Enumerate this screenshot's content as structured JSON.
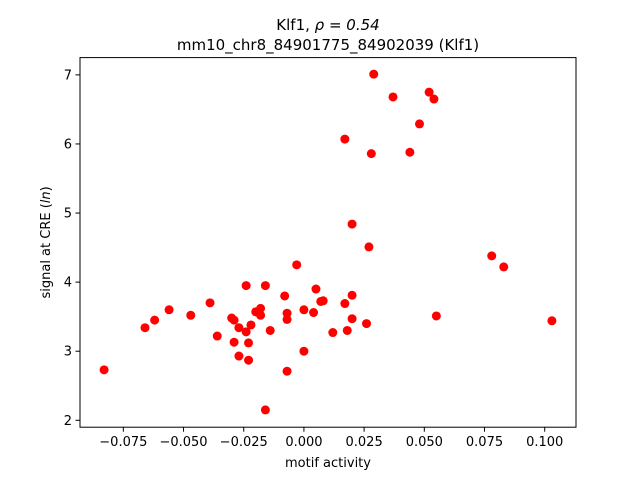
{
  "chart_data": {
    "type": "scatter",
    "title_line1_name": "Klf1, ",
    "title_line1_rho": "ρ = 0.54",
    "title_line2": "mm10_chr8_84901775_84902039 (Klf1)",
    "xlabel": "motif activity",
    "ylabel_main": "signal at CRE (",
    "ylabel_italic": "ln",
    "ylabel_close": ")",
    "xlim": [
      -0.093,
      0.113
    ],
    "ylim": [
      1.9,
      7.25
    ],
    "xticks": [
      -0.075,
      -0.05,
      -0.025,
      0.0,
      0.025,
      0.05,
      0.075,
      0.1
    ],
    "xtick_labels": [
      "−0.075",
      "−0.050",
      "−0.025",
      "0.000",
      "0.025",
      "0.050",
      "0.075",
      "0.100"
    ],
    "yticks": [
      2,
      3,
      4,
      5,
      6,
      7
    ],
    "ytick_labels": [
      "2",
      "3",
      "4",
      "5",
      "6",
      "7"
    ],
    "marker_color": "#ff0000",
    "grid": false,
    "points": [
      {
        "x": -0.083,
        "y": 2.73
      },
      {
        "x": -0.066,
        "y": 3.34
      },
      {
        "x": -0.062,
        "y": 3.45
      },
      {
        "x": -0.056,
        "y": 3.6
      },
      {
        "x": -0.047,
        "y": 3.52
      },
      {
        "x": -0.039,
        "y": 3.7
      },
      {
        "x": -0.036,
        "y": 3.22
      },
      {
        "x": -0.03,
        "y": 3.48
      },
      {
        "x": -0.029,
        "y": 3.45
      },
      {
        "x": -0.029,
        "y": 3.13
      },
      {
        "x": -0.027,
        "y": 2.93
      },
      {
        "x": -0.027,
        "y": 3.34
      },
      {
        "x": -0.024,
        "y": 3.95
      },
      {
        "x": -0.024,
        "y": 3.28
      },
      {
        "x": -0.023,
        "y": 3.12
      },
      {
        "x": -0.023,
        "y": 2.87
      },
      {
        "x": -0.022,
        "y": 3.38
      },
      {
        "x": -0.02,
        "y": 3.57
      },
      {
        "x": -0.018,
        "y": 3.62
      },
      {
        "x": -0.018,
        "y": 3.52
      },
      {
        "x": -0.016,
        "y": 3.95
      },
      {
        "x": -0.016,
        "y": 2.15
      },
      {
        "x": -0.014,
        "y": 3.3
      },
      {
        "x": -0.008,
        "y": 3.8
      },
      {
        "x": -0.007,
        "y": 3.55
      },
      {
        "x": -0.007,
        "y": 3.46
      },
      {
        "x": -0.007,
        "y": 2.71
      },
      {
        "x": -0.003,
        "y": 4.25
      },
      {
        "x": 0.0,
        "y": 3.6
      },
      {
        "x": 0.0,
        "y": 3.0
      },
      {
        "x": 0.004,
        "y": 3.56
      },
      {
        "x": 0.005,
        "y": 3.9
      },
      {
        "x": 0.007,
        "y": 3.72
      },
      {
        "x": 0.008,
        "y": 3.73
      },
      {
        "x": 0.012,
        "y": 3.27
      },
      {
        "x": 0.017,
        "y": 6.07
      },
      {
        "x": 0.017,
        "y": 3.69
      },
      {
        "x": 0.018,
        "y": 3.3
      },
      {
        "x": 0.02,
        "y": 4.84
      },
      {
        "x": 0.02,
        "y": 3.81
      },
      {
        "x": 0.02,
        "y": 3.47
      },
      {
        "x": 0.026,
        "y": 3.4
      },
      {
        "x": 0.027,
        "y": 4.51
      },
      {
        "x": 0.028,
        "y": 5.86
      },
      {
        "x": 0.029,
        "y": 7.01
      },
      {
        "x": 0.037,
        "y": 6.68
      },
      {
        "x": 0.044,
        "y": 5.88
      },
      {
        "x": 0.048,
        "y": 6.29
      },
      {
        "x": 0.052,
        "y": 6.75
      },
      {
        "x": 0.054,
        "y": 6.65
      },
      {
        "x": 0.055,
        "y": 3.51
      },
      {
        "x": 0.078,
        "y": 4.38
      },
      {
        "x": 0.083,
        "y": 4.22
      },
      {
        "x": 0.103,
        "y": 3.44
      }
    ]
  }
}
